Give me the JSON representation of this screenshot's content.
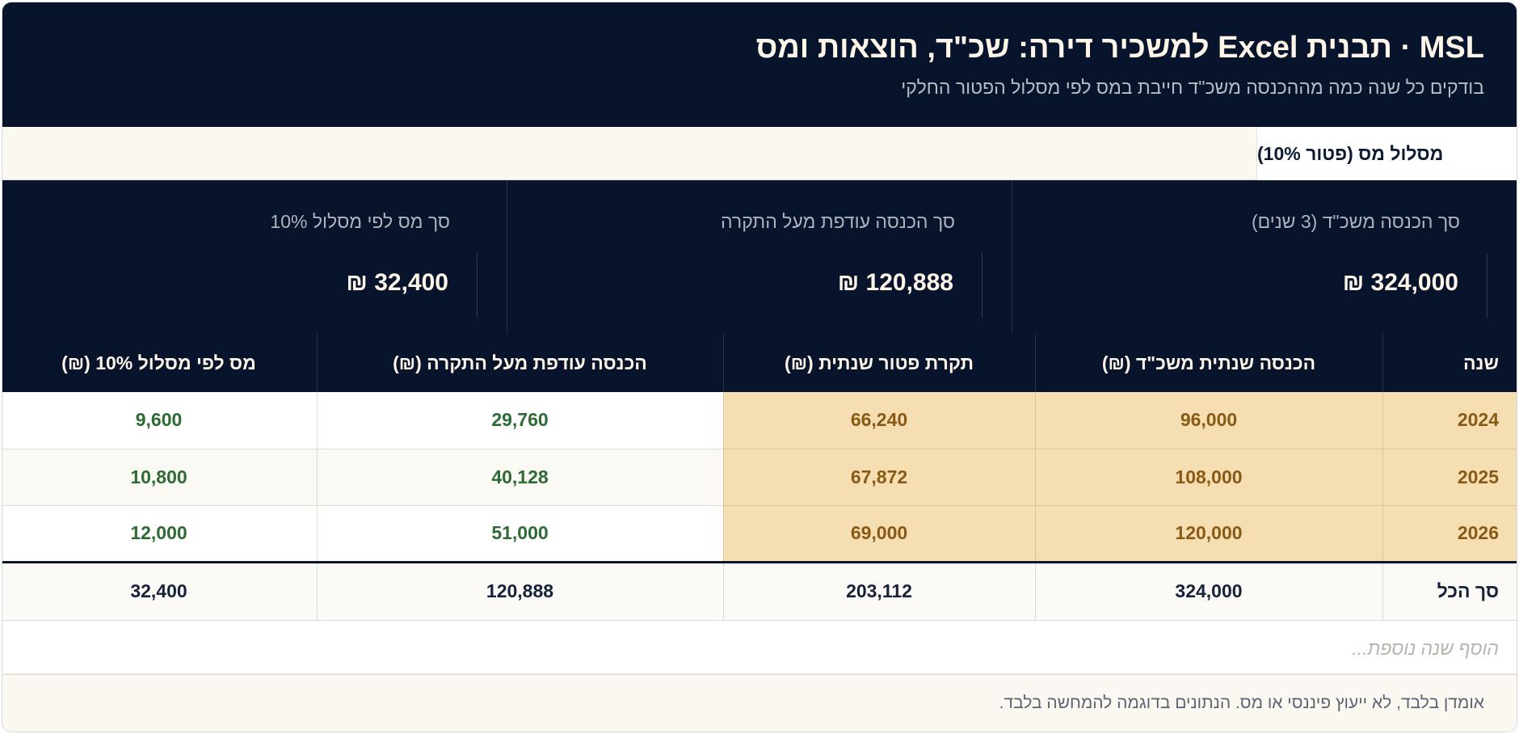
{
  "header": {
    "title": "MSL · תבנית Excel למשכיר דירה: שכ\"ד, הוצאות ומס",
    "subtitle": "בודקים כל שנה כמה מההכנסה משכ\"ד חייבת במס לפי מסלול הפטור החלקי"
  },
  "tabs": [
    {
      "label": "מסלול מס (פטור 10%)",
      "active": true
    }
  ],
  "summary": [
    {
      "label": "סך הכנסה משכ\"ד (3 שנים)",
      "value": "324,000 ₪"
    },
    {
      "label": "סך הכנסה עודפת מעל התקרה",
      "value": "120,888 ₪"
    },
    {
      "label": "סך מס לפי מסלול 10%",
      "value": "32,400 ₪"
    }
  ],
  "table": {
    "columns": [
      "שנה",
      "הכנסה שנתית משכ\"ד (₪)",
      "תקרת פטור שנתית (₪)",
      "הכנסה עודפת מעל התקרה (₪)",
      "מס לפי מסלול 10% (₪)"
    ],
    "rows": [
      [
        "2024",
        "96,000",
        "66,240",
        "29,760",
        "9,600"
      ],
      [
        "2025",
        "108,000",
        "67,872",
        "40,128",
        "10,800"
      ],
      [
        "2026",
        "120,000",
        "69,000",
        "51,000",
        "12,000"
      ]
    ],
    "total": [
      "סך הכל",
      "324,000",
      "203,112",
      "120,888",
      "32,400"
    ],
    "add_row_placeholder": "הוסף שנה נוספת..."
  },
  "footer": {
    "disclaimer": "אומדן בלבד, לא ייעוץ פיננסי או מס. הנתונים בדוגמה להמחשה בלבד."
  },
  "colors": {
    "navy": "#08142b",
    "cream": "#fdf6e8",
    "highlight": "#f5deb1",
    "highlight_text": "#8a5a14",
    "positive_green": "#2e6b34"
  }
}
